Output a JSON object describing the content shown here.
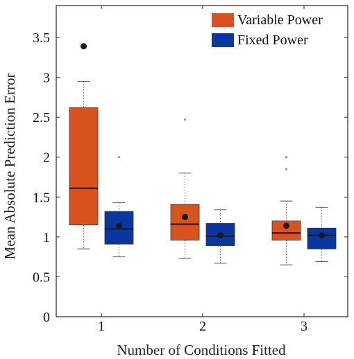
{
  "chart_data": {
    "type": "box",
    "xlabel": "Number of Conditions Fitted",
    "ylabel": "Mean Absolute Prediction Error",
    "categories": [
      "1",
      "2",
      "3"
    ],
    "ylim": [
      0,
      3.9
    ],
    "yticks": [
      0,
      0.5,
      1,
      1.5,
      2,
      2.5,
      3,
      3.5
    ],
    "ytick_labels": [
      "0",
      "0.5",
      "1",
      "1.5",
      "2",
      "2.5",
      "3",
      "3.5"
    ],
    "legend_position": "top-right",
    "series": [
      {
        "name": "Variable Power",
        "color": "#d9531e",
        "boxes": [
          {
            "category": "1",
            "whisker_low": 0.85,
            "q1": 1.15,
            "median": 1.61,
            "q3": 2.62,
            "whisker_high": 2.95,
            "mean": 3.39,
            "outliers": []
          },
          {
            "category": "2",
            "whisker_low": 0.73,
            "q1": 0.96,
            "median": 1.16,
            "q3": 1.41,
            "whisker_high": 1.8,
            "mean": 1.25,
            "outliers": [
              2.47
            ]
          },
          {
            "category": "3",
            "whisker_low": 0.65,
            "q1": 0.96,
            "median": 1.05,
            "q3": 1.2,
            "whisker_high": 1.45,
            "mean": 1.14,
            "outliers": [
              1.85,
              2.0
            ]
          }
        ]
      },
      {
        "name": "Fixed Power",
        "color": "#0a36a0",
        "boxes": [
          {
            "category": "1",
            "whisker_low": 0.75,
            "q1": 0.91,
            "median": 1.1,
            "q3": 1.32,
            "whisker_high": 1.43,
            "mean": 1.14,
            "outliers": [
              2.0
            ]
          },
          {
            "category": "2",
            "whisker_low": 0.67,
            "q1": 0.89,
            "median": 1.01,
            "q3": 1.17,
            "whisker_high": 1.34,
            "mean": 1.02,
            "outliers": []
          },
          {
            "category": "3",
            "whisker_low": 0.69,
            "q1": 0.85,
            "median": 1.02,
            "q3": 1.11,
            "whisker_high": 1.37,
            "mean": 1.02,
            "outliers": []
          }
        ]
      }
    ]
  }
}
